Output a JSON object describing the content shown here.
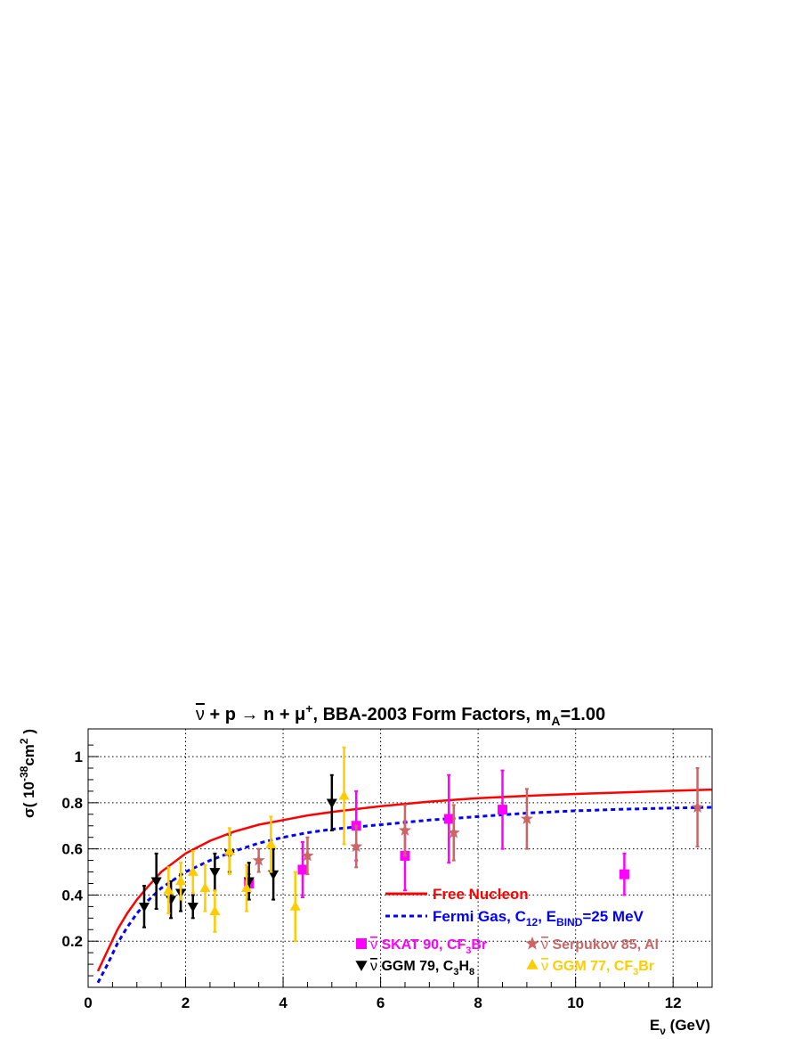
{
  "chart_data": {
    "type": "scatter",
    "title": {
      "parts": [
        {
          "t": "ν",
          "bar": true
        },
        {
          "t": " + p → n + μ"
        },
        {
          "t": "+",
          "sup": true
        },
        {
          "t": ", BBA-2003 Form Factors, m"
        },
        {
          "t": "A",
          "sub": true
        },
        {
          "t": "=1.00"
        }
      ]
    },
    "xlabel": {
      "parts": [
        {
          "t": "E"
        },
        {
          "t": "ν",
          "sub": true
        },
        {
          "t": " (GeV)"
        }
      ]
    },
    "ylabel": {
      "parts": [
        {
          "t": "σ( 10"
        },
        {
          "t": "-38",
          "sup": true
        },
        {
          "t": "cm"
        },
        {
          "t": "2",
          "sup": true
        },
        {
          "t": " )"
        }
      ]
    },
    "xlim": [
      0,
      12.8
    ],
    "ylim": [
      0,
      1.12
    ],
    "xticks": [
      "0",
      "2",
      "4",
      "6",
      "8",
      "10",
      "12"
    ],
    "xtick_values": [
      0,
      2,
      4,
      6,
      8,
      10,
      12
    ],
    "yticks": [
      "0.2",
      "0.4",
      "0.6",
      "0.8",
      "1"
    ],
    "ytick_values": [
      0.2,
      0.4,
      0.6,
      0.8,
      1.0
    ],
    "grid": true,
    "curves": [
      {
        "label": "Free Nucleon",
        "style": "solid",
        "color": "#ff0000",
        "x": [
          0.2,
          0.4,
          0.6,
          0.8,
          1.0,
          1.2,
          1.5,
          2.0,
          2.5,
          3.0,
          3.5,
          4.0,
          4.5,
          5.0,
          6.0,
          7.0,
          8.0,
          9.0,
          10.0,
          11.0,
          12.0,
          12.8
        ],
        "y": [
          0.07,
          0.16,
          0.25,
          0.32,
          0.38,
          0.43,
          0.5,
          0.58,
          0.635,
          0.675,
          0.705,
          0.725,
          0.745,
          0.76,
          0.785,
          0.805,
          0.82,
          0.83,
          0.838,
          0.845,
          0.852,
          0.857
        ]
      },
      {
        "label": "Fermi Gas, C_12, E_BIND=25 MeV",
        "style": "dashed",
        "color": "#0000ff",
        "x": [
          0.2,
          0.4,
          0.6,
          0.8,
          1.0,
          1.2,
          1.5,
          2.0,
          2.5,
          3.0,
          3.5,
          4.0,
          4.5,
          5.0,
          6.0,
          7.0,
          8.0,
          9.0,
          10.0,
          11.0,
          12.0,
          12.8
        ],
        "y": [
          0.02,
          0.1,
          0.19,
          0.26,
          0.32,
          0.37,
          0.43,
          0.5,
          0.55,
          0.59,
          0.625,
          0.65,
          0.67,
          0.685,
          0.705,
          0.725,
          0.74,
          0.755,
          0.765,
          0.772,
          0.777,
          0.78
        ]
      }
    ],
    "series": [
      {
        "name": "SKAT 90, CF_3Br",
        "marker": "square",
        "color": "#ff00ff",
        "points": [
          {
            "x": 3.3,
            "y": 0.45,
            "err": 0.04
          },
          {
            "x": 4.4,
            "y": 0.51,
            "err": 0.12
          },
          {
            "x": 5.5,
            "y": 0.7,
            "err": 0.15
          },
          {
            "x": 6.5,
            "y": 0.57,
            "err": 0.15
          },
          {
            "x": 7.4,
            "y": 0.73,
            "err": 0.19
          },
          {
            "x": 8.5,
            "y": 0.77,
            "err": 0.17
          },
          {
            "x": 11.0,
            "y": 0.49,
            "err": 0.09
          }
        ]
      },
      {
        "name": "Serpukov 85, Al",
        "marker": "star",
        "color": "#cc6666",
        "points": [
          {
            "x": 3.5,
            "y": 0.55,
            "err": 0.05
          },
          {
            "x": 4.5,
            "y": 0.57,
            "err": 0.08
          },
          {
            "x": 5.5,
            "y": 0.61,
            "err": 0.09
          },
          {
            "x": 6.5,
            "y": 0.68,
            "err": 0.11
          },
          {
            "x": 7.5,
            "y": 0.67,
            "err": 0.12
          },
          {
            "x": 9.0,
            "y": 0.73,
            "err": 0.13
          },
          {
            "x": 12.5,
            "y": 0.78,
            "err": 0.17
          }
        ]
      },
      {
        "name": "GGM 79, C_3H_8",
        "marker": "triangle-down",
        "color": "#000000",
        "points": [
          {
            "x": 1.15,
            "y": 0.35,
            "err": 0.09
          },
          {
            "x": 1.4,
            "y": 0.46,
            "err": 0.12
          },
          {
            "x": 1.7,
            "y": 0.38,
            "err": 0.08
          },
          {
            "x": 1.9,
            "y": 0.41,
            "err": 0.08
          },
          {
            "x": 2.15,
            "y": 0.35,
            "err": 0.05
          },
          {
            "x": 2.6,
            "y": 0.5,
            "err": 0.08
          },
          {
            "x": 2.9,
            "y": 0.58,
            "err": 0.08
          },
          {
            "x": 3.3,
            "y": 0.46,
            "err": 0.08
          },
          {
            "x": 3.8,
            "y": 0.49,
            "err": 0.11
          },
          {
            "x": 5.0,
            "y": 0.8,
            "err": 0.12
          }
        ]
      },
      {
        "name": "GGM 77, CF_3Br",
        "marker": "triangle-up",
        "color": "#ffcc00",
        "points": [
          {
            "x": 1.65,
            "y": 0.42,
            "err": 0.1
          },
          {
            "x": 1.9,
            "y": 0.46,
            "err": 0.08
          },
          {
            "x": 2.15,
            "y": 0.5,
            "err": 0.09
          },
          {
            "x": 2.4,
            "y": 0.43,
            "err": 0.1
          },
          {
            "x": 2.6,
            "y": 0.33,
            "err": 0.09
          },
          {
            "x": 2.9,
            "y": 0.59,
            "err": 0.1
          },
          {
            "x": 3.25,
            "y": 0.43,
            "err": 0.1
          },
          {
            "x": 3.75,
            "y": 0.62,
            "err": 0.12
          },
          {
            "x": 4.25,
            "y": 0.35,
            "err": 0.15
          },
          {
            "x": 5.25,
            "y": 0.83,
            "err": 0.21
          }
        ]
      }
    ],
    "legend_lines": [
      {
        "label": {
          "parts": [
            {
              "t": "Free Nucleon"
            }
          ]
        },
        "style": "solid",
        "color": "#ff0000"
      },
      {
        "label": {
          "parts": [
            {
              "t": "Fermi Gas, C"
            },
            {
              "t": "12",
              "sub": true
            },
            {
              "t": ", E"
            },
            {
              "t": "BIND",
              "sub": true
            },
            {
              "t": "=25 MeV"
            }
          ]
        },
        "style": "dashed",
        "color": "#0000ff"
      }
    ],
    "legend_markers": [
      {
        "marker": "square",
        "color": "#ff00ff",
        "label": {
          "parts": [
            {
              "t": "ν",
              "bar": true
            },
            {
              "t": " SKAT 90, CF"
            },
            {
              "t": "3",
              "sub": true
            },
            {
              "t": "Br"
            }
          ]
        }
      },
      {
        "marker": "star",
        "color": "#cc6666",
        "label": {
          "parts": [
            {
              "t": "ν",
              "bar": true
            },
            {
              "t": " Serpukov 85, Al"
            }
          ]
        }
      },
      {
        "marker": "triangle-down",
        "color": "#000000",
        "label": {
          "parts": [
            {
              "t": "ν",
              "bar": true
            },
            {
              "t": " GGM 79, C"
            },
            {
              "t": "3",
              "sub": true
            },
            {
              "t": "H"
            },
            {
              "t": "8",
              "sub": true
            }
          ]
        }
      },
      {
        "marker": "triangle-up",
        "color": "#ffcc00",
        "label": {
          "parts": [
            {
              "t": "ν",
              "bar": true
            },
            {
              "t": " GGM 77, CF"
            },
            {
              "t": "3",
              "sub": true
            },
            {
              "t": "Br"
            }
          ]
        }
      }
    ],
    "legend_placement": "bottom-right"
  }
}
